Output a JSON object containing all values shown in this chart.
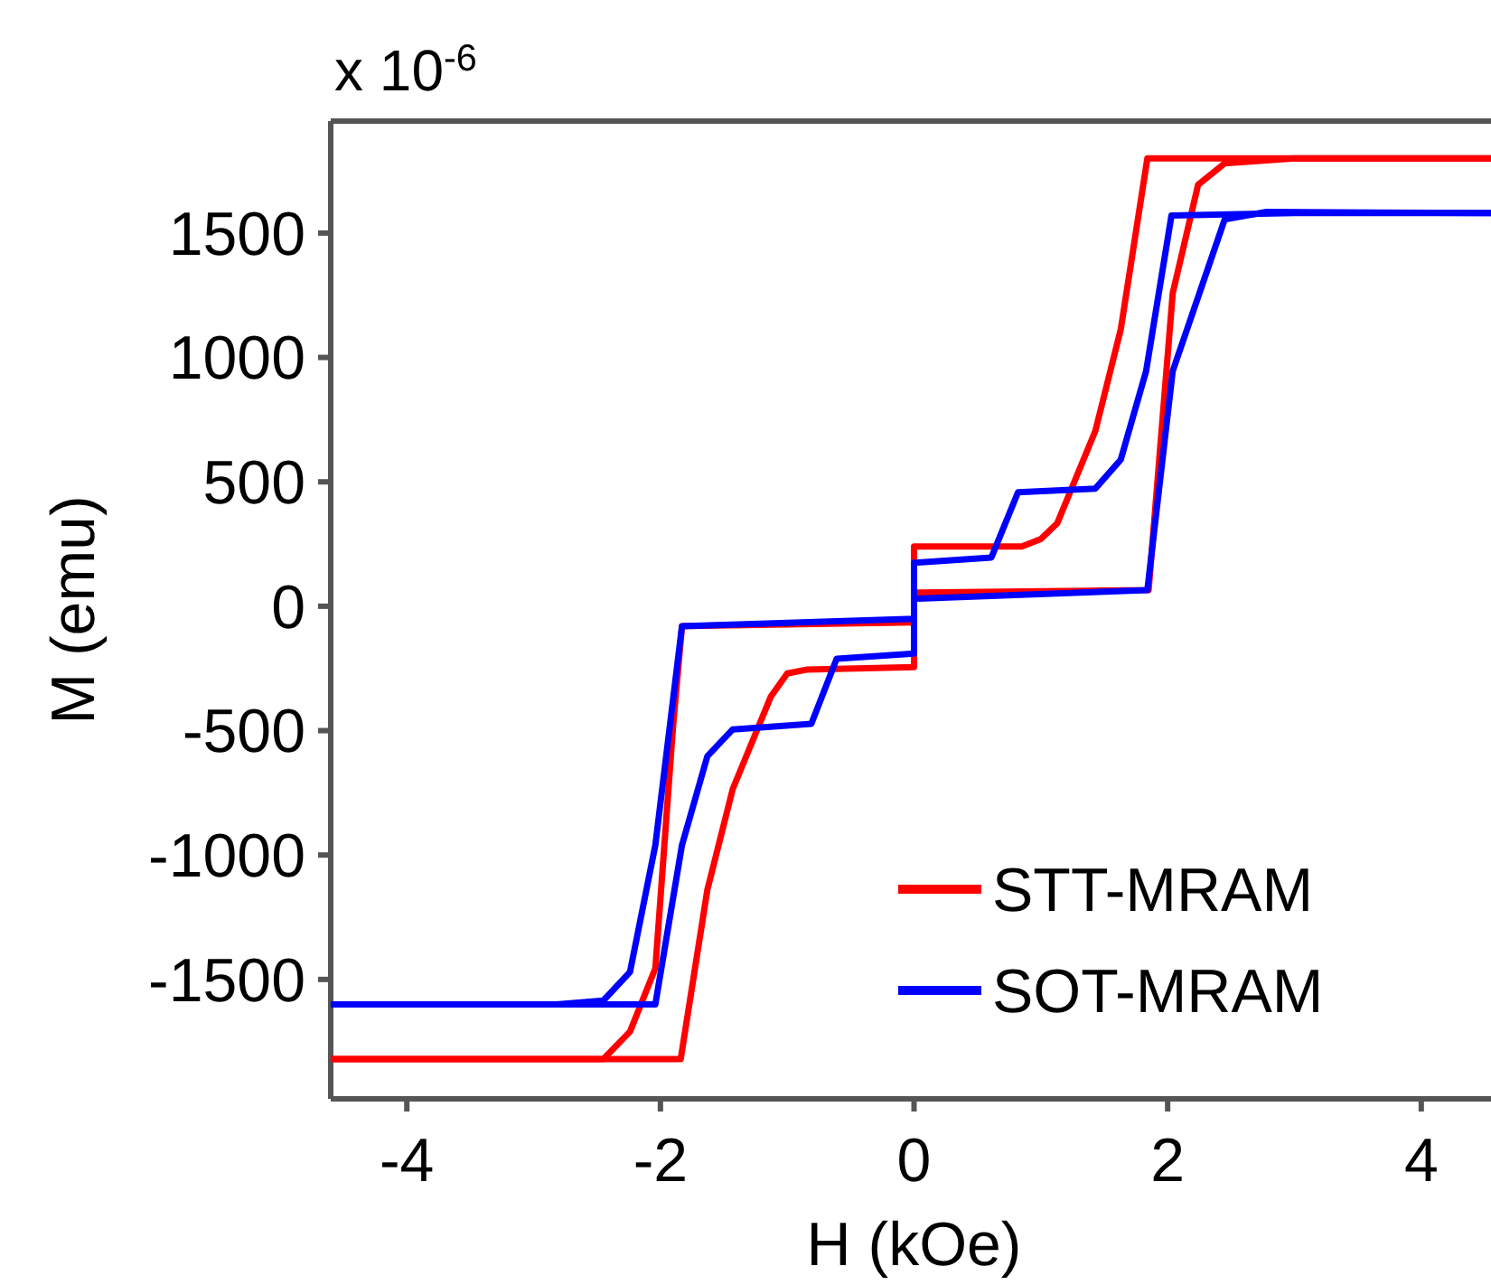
{
  "chart_data": {
    "type": "line",
    "xlabel": "H (kOe)",
    "ylabel": "M (emu)",
    "annotations": [
      "x 10$^{-6}$"
    ],
    "xlim": [
      -4.6,
      4.55
    ],
    "ylim": [
      -1980,
      1950
    ],
    "xticks": [
      -4,
      -2,
      0,
      2,
      4
    ],
    "yticks": [
      -1500,
      -1000,
      -500,
      0,
      500,
      1000,
      1500
    ],
    "grid": false,
    "legend": "bottom right",
    "marker": "none",
    "line_style": "solid",
    "series": [
      {
        "name": "STT-MRAM",
        "color": "#ff0000",
        "x": [
          -4.6,
          -3,
          -1.84,
          -1.63,
          -1.43,
          -1.13,
          -1.0,
          -0.85,
          0,
          0,
          0.85,
          1.0,
          1.13,
          1.43,
          1.63,
          1.84,
          3,
          4.55
        ],
        "values": [
          -1820,
          -1820,
          -1820,
          -1140,
          -735,
          -364,
          -270,
          -255,
          -245,
          240,
          240,
          270,
          334,
          705,
          1112,
          1800,
          1800,
          1800
        ]
      },
      {
        "color": "#ff0000",
        "x": [
          -4.6,
          -3,
          -2.45,
          -2.24,
          -2.04,
          -1.9,
          -1.83,
          0,
          0,
          1.85,
          2.04,
          2.24,
          2.45,
          3,
          4.55
        ],
        "values": [
          -1820,
          -1820,
          -1820,
          -1710,
          -1455,
          -480,
          -80,
          -65,
          55,
          65,
          1258,
          1694,
          1780,
          1800,
          1800
        ]
      },
      {
        "name": "SOT-MRAM",
        "color": "#0000ff",
        "x": [
          -4.6,
          -3,
          -2.04,
          -1.83,
          -1.63,
          -1.43,
          -0.81,
          -0.61,
          0,
          0,
          0.61,
          0.82,
          1.43,
          1.63,
          1.83,
          2.03,
          3,
          4.55
        ],
        "values": [
          -1600,
          -1600,
          -1600,
          -960,
          -603,
          -495,
          -473,
          -211,
          -190,
          175,
          196,
          458,
          473,
          589,
          945,
          1570,
          1580,
          1580
        ]
      },
      {
        "color": "#0000ff",
        "x": [
          -4.6,
          -2.82,
          -2.45,
          -2.24,
          -2.04,
          -1.83,
          0,
          0,
          1.84,
          2.04,
          2.26,
          2.45,
          2.78,
          4.55
        ],
        "values": [
          -1600,
          -1600,
          -1585,
          -1470,
          -960,
          -80,
          -50,
          30,
          65,
          945,
          1272,
          1555,
          1585,
          1580
        ]
      }
    ]
  }
}
